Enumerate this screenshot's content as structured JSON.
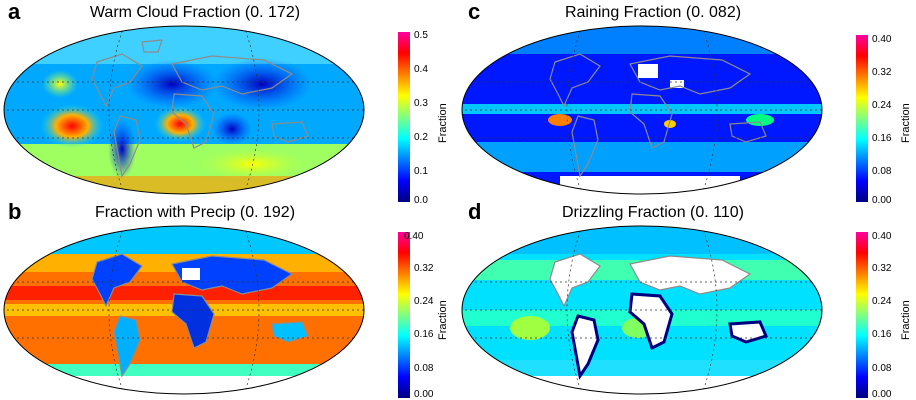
{
  "panels": [
    {
      "letter": "a",
      "title": "Warm Cloud Fraction (0. 172)",
      "colorbar": {
        "label": "Fraction",
        "ticks": [
          "0.5",
          "0.4",
          "0.3",
          "0.2",
          "0.1",
          "0.0"
        ],
        "range": [
          0.0,
          0.5
        ]
      }
    },
    {
      "letter": "c",
      "title": "Raining Fraction (0. 082)",
      "colorbar": {
        "label": "Fraction",
        "ticks": [
          "0.40",
          "0.32",
          "0.24",
          "0.16",
          "0.08",
          "0.00"
        ],
        "range": [
          0.0,
          0.4
        ]
      }
    },
    {
      "letter": "b",
      "title": "Fraction with Precip (0. 192)",
      "colorbar": {
        "label": "Fraction",
        "ticks": [
          "0.40",
          "0.32",
          "0.24",
          "0.16",
          "0.08",
          "0.00"
        ],
        "range": [
          0.0,
          0.4
        ]
      }
    },
    {
      "letter": "d",
      "title": "Drizzling Fraction (0. 110)",
      "colorbar": {
        "label": "Fraction",
        "ticks": [
          "0.40",
          "0.32",
          "0.24",
          "0.16",
          "0.08",
          "0.00"
        ],
        "range": [
          0.0,
          0.4
        ]
      }
    }
  ],
  "colors": {
    "colormap": [
      "#00007f",
      "#0000ff",
      "#0080ff",
      "#00ffff",
      "#80ff80",
      "#ffff00",
      "#ff8000",
      "#ff0000",
      "#ff00a0"
    ],
    "coastline": "#8c8c8c",
    "missing": "#ffffff"
  }
}
